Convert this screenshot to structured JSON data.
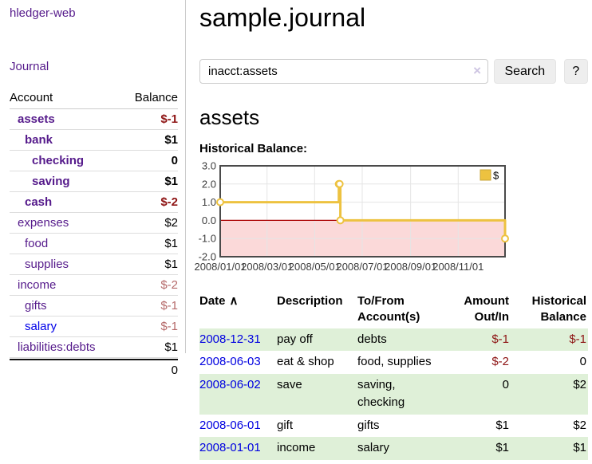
{
  "app": {
    "brand": "hledger-web",
    "nav_journal": "Journal"
  },
  "sidebar": {
    "columns": {
      "account": "Account",
      "balance": "Balance"
    },
    "accounts": [
      {
        "name": "assets",
        "indent": 1,
        "bold": true,
        "balance": "$-1",
        "neg": "strong"
      },
      {
        "name": "bank",
        "indent": 2,
        "bold": true,
        "balance": "$1"
      },
      {
        "name": "checking",
        "indent": 3,
        "bold": true,
        "balance": "0"
      },
      {
        "name": "saving",
        "indent": 3,
        "bold": true,
        "balance": "$1"
      },
      {
        "name": "cash",
        "indent": 2,
        "bold": true,
        "balance": "$-2",
        "neg": "strong"
      },
      {
        "name": "expenses",
        "indent": 1,
        "bold": false,
        "balance": "$2"
      },
      {
        "name": "food",
        "indent": 2,
        "bold": false,
        "balance": "$1"
      },
      {
        "name": "supplies",
        "indent": 2,
        "bold": false,
        "balance": "$1"
      },
      {
        "name": "income",
        "indent": 1,
        "bold": false,
        "balance": "$-2",
        "neg": "soft"
      },
      {
        "name": "gifts",
        "indent": 2,
        "bold": false,
        "balance": "$-1",
        "neg": "soft"
      },
      {
        "name": "salary",
        "indent": 2,
        "bold": false,
        "balance": "$-1",
        "neg": "soft",
        "link_color": "blue"
      },
      {
        "name": "liabilities:debts",
        "indent": 1,
        "bold": false,
        "balance": "$1"
      }
    ],
    "total": "0"
  },
  "header": {
    "title": "sample.journal"
  },
  "search": {
    "value": "inacct:assets",
    "clear_icon": "×",
    "button": "Search",
    "help_button": "?"
  },
  "account_page": {
    "heading": "assets",
    "chart_label": "Historical Balance:"
  },
  "chart_data": {
    "type": "line",
    "step": true,
    "title": "Historical Balance:",
    "series": [
      {
        "name": "$",
        "color": "#edc240",
        "points": [
          [
            "2008-01-01",
            1
          ],
          [
            "2008-06-01",
            2
          ],
          [
            "2008-06-02",
            2
          ],
          [
            "2008-06-03",
            0
          ],
          [
            "2008-12-31",
            -1
          ]
        ]
      }
    ],
    "ylim": [
      -2.0,
      3.0
    ],
    "yticks": [
      3.0,
      2.0,
      1.0,
      0.0,
      -1.0,
      -2.0
    ],
    "ytick_labels": [
      "3.0",
      "2.0",
      "1.0",
      "0.0",
      "-1.0",
      "-2.0"
    ],
    "xrange": [
      "2008-01-01",
      "2008-12-31"
    ],
    "xtick_dates": [
      "2008-01-01",
      "2008-03-01",
      "2008-05-01",
      "2008-07-01",
      "2008-09-01",
      "2008-11-01"
    ],
    "xtick_labels": [
      "2008/01/01",
      "2008/03/01",
      "2008/05/01",
      "2008/07/01",
      "2008/09/01",
      "2008/11/01"
    ],
    "grid": true,
    "legend": {
      "label": "$",
      "position": "top-right"
    },
    "negative_region_color": "#fbd9d9",
    "zero_line_color": "#aa0000",
    "border_color": "#4a4a4a",
    "gridline_color": "#e5e5e5"
  },
  "register": {
    "columns": [
      {
        "label": "Date",
        "sort_icon": "∧"
      },
      {
        "label": "Description"
      },
      {
        "label": "To/From Account(s)"
      },
      {
        "label": "Amount Out/In",
        "align": "right"
      },
      {
        "label": "Historical Balance",
        "align": "right"
      }
    ],
    "rows": [
      {
        "date": "2008-12-31",
        "description": "pay off",
        "accounts": "debts",
        "amount": "$-1",
        "balance": "$-1"
      },
      {
        "date": "2008-06-03",
        "description": "eat & shop",
        "accounts": "food, supplies",
        "amount": "$-2",
        "balance": "0"
      },
      {
        "date": "2008-06-02",
        "description": "save",
        "accounts": "saving, checking",
        "amount": "0",
        "balance": "$2"
      },
      {
        "date": "2008-06-01",
        "description": "gift",
        "accounts": "gifts",
        "amount": "$1",
        "balance": "$2"
      },
      {
        "date": "2008-01-01",
        "description": "income",
        "accounts": "salary",
        "amount": "$1",
        "balance": "$1"
      }
    ]
  }
}
